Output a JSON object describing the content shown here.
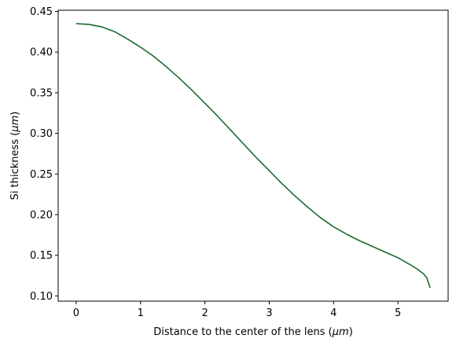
{
  "chart_data": {
    "type": "line",
    "title": "",
    "xlabel": {
      "prefix": "Distance to the center of the lens (",
      "unit": "μm",
      "suffix": ")"
    },
    "ylabel": {
      "prefix": "Si thickness (",
      "unit": "μm",
      "suffix": ")"
    },
    "xlim": [
      -0.28,
      5.78
    ],
    "ylim": [
      0.0935,
      0.4515
    ],
    "xticks": [
      0,
      1,
      2,
      3,
      4,
      5
    ],
    "xtick_labels": [
      "0",
      "1",
      "2",
      "3",
      "4",
      "5"
    ],
    "yticks": [
      0.1,
      0.15,
      0.2,
      0.25,
      0.3,
      0.35,
      0.4,
      0.45
    ],
    "ytick_labels": [
      "0.10",
      "0.15",
      "0.20",
      "0.25",
      "0.30",
      "0.35",
      "0.40",
      "0.45"
    ],
    "grid": false,
    "series": [
      {
        "color": "#1b6b30",
        "x": [
          0,
          0.2,
          0.4,
          0.6,
          0.8,
          1.0,
          1.2,
          1.4,
          1.6,
          1.8,
          2.0,
          2.2,
          2.4,
          2.6,
          2.8,
          3.0,
          3.2,
          3.4,
          3.6,
          3.8,
          4.0,
          4.2,
          4.4,
          4.6,
          4.8,
          5.0,
          5.2,
          5.3,
          5.4,
          5.45,
          5.5
        ],
        "y": [
          0.435,
          0.434,
          0.431,
          0.425,
          0.416,
          0.406,
          0.395,
          0.382,
          0.368,
          0.353,
          0.337,
          0.321,
          0.304,
          0.287,
          0.27,
          0.254,
          0.238,
          0.223,
          0.209,
          0.196,
          0.185,
          0.176,
          0.168,
          0.161,
          0.154,
          0.147,
          0.138,
          0.133,
          0.127,
          0.122,
          0.11
        ]
      }
    ]
  }
}
